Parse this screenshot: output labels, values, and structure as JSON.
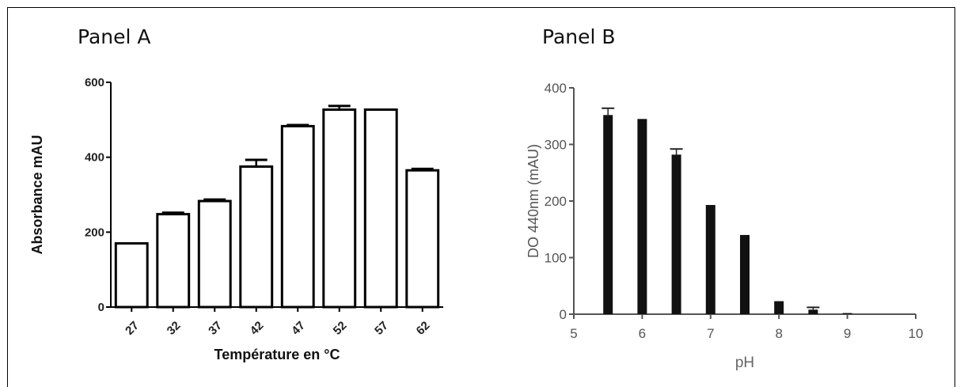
{
  "panels": {
    "a_label": "Panel A",
    "b_label": "Panel B"
  },
  "chart_data": [
    {
      "type": "bar",
      "title": "",
      "xlabel": "Température en °C",
      "ylabel": "Absorbance mAU",
      "categories": [
        "27",
        "32",
        "37",
        "42",
        "47",
        "52",
        "57",
        "62"
      ],
      "values": [
        170,
        248,
        283,
        375,
        483,
        527,
        527,
        365
      ],
      "errors": [
        0,
        4,
        4,
        18,
        3,
        10,
        0,
        4
      ],
      "ylim": [
        0,
        600
      ],
      "yticks": [
        0,
        200,
        400,
        600
      ],
      "bar_fill": "#ffffff",
      "bar_stroke": "#000000",
      "grid": false
    },
    {
      "type": "bar",
      "title": "",
      "xlabel": "pH",
      "ylabel": "DO 440nm (mAU)",
      "x": [
        5.5,
        6,
        6.5,
        7,
        7.5,
        8,
        8.5,
        9
      ],
      "values": [
        352,
        345,
        282,
        193,
        140,
        23,
        8,
        2
      ],
      "errors": [
        12,
        0,
        10,
        0,
        0,
        0,
        4,
        0
      ],
      "xlim": [
        5,
        10
      ],
      "xticks": [
        5,
        6,
        7,
        8,
        9,
        10
      ],
      "ylim": [
        0,
        400
      ],
      "yticks": [
        0,
        100,
        200,
        300,
        400
      ],
      "bar_fill": "#111111",
      "grid": false
    }
  ]
}
